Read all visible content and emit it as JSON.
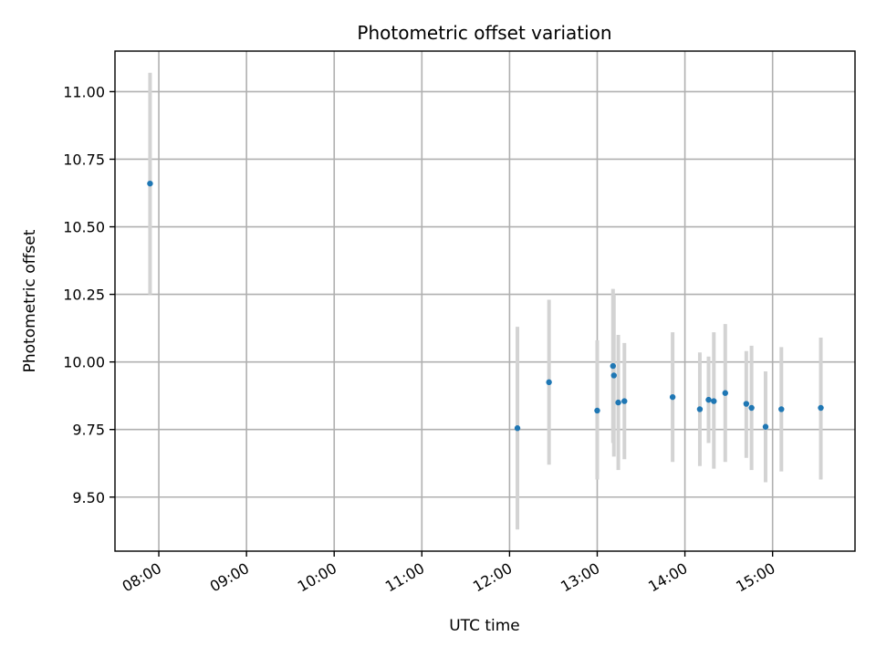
{
  "chart_data": {
    "type": "scatter",
    "title": "Photometric offset variation",
    "xlabel": "UTC time",
    "ylabel": "Photometric offset",
    "x_unit": "UTC time (hours, decimal)",
    "xlim": [
      7.5,
      15.94
    ],
    "ylim": [
      9.3,
      11.15
    ],
    "x_ticks": [
      {
        "value": 8,
        "label": "08:00"
      },
      {
        "value": 9,
        "label": "09:00"
      },
      {
        "value": 10,
        "label": "10:00"
      },
      {
        "value": 11,
        "label": "11:00"
      },
      {
        "value": 12,
        "label": "12:00"
      },
      {
        "value": 13,
        "label": "13:00"
      },
      {
        "value": 14,
        "label": "14:00"
      },
      {
        "value": 15,
        "label": "15:00"
      }
    ],
    "y_ticks": [
      {
        "value": 9.5,
        "label": "9.50"
      },
      {
        "value": 9.75,
        "label": "9.75"
      },
      {
        "value": 10.0,
        "label": "10.00"
      },
      {
        "value": 10.25,
        "label": "10.25"
      },
      {
        "value": 10.5,
        "label": "10.50"
      },
      {
        "value": 10.75,
        "label": "10.75"
      },
      {
        "value": 11.0,
        "label": "11.00"
      }
    ],
    "grid": true,
    "marker_color": "#1f77b4",
    "errorbar_color": "#d3d3d3",
    "points": [
      {
        "x": 7.9,
        "y": 10.66,
        "ylow": 10.25,
        "yhigh": 11.07
      },
      {
        "x": 12.09,
        "y": 9.755,
        "ylow": 9.38,
        "yhigh": 10.13
      },
      {
        "x": 12.45,
        "y": 9.925,
        "ylow": 9.62,
        "yhigh": 10.23
      },
      {
        "x": 13.0,
        "y": 9.82,
        "ylow": 9.565,
        "yhigh": 10.08
      },
      {
        "x": 13.18,
        "y": 9.985,
        "ylow": 9.7,
        "yhigh": 10.27
      },
      {
        "x": 13.19,
        "y": 9.95,
        "ylow": 9.65,
        "yhigh": 10.25
      },
      {
        "x": 13.24,
        "y": 9.85,
        "ylow": 9.6,
        "yhigh": 10.1
      },
      {
        "x": 13.31,
        "y": 9.855,
        "ylow": 9.64,
        "yhigh": 10.07
      },
      {
        "x": 13.86,
        "y": 9.87,
        "ylow": 9.63,
        "yhigh": 10.11
      },
      {
        "x": 14.17,
        "y": 9.825,
        "ylow": 9.615,
        "yhigh": 10.035
      },
      {
        "x": 14.27,
        "y": 9.86,
        "ylow": 9.7,
        "yhigh": 10.02
      },
      {
        "x": 14.33,
        "y": 9.855,
        "ylow": 9.605,
        "yhigh": 10.11
      },
      {
        "x": 14.46,
        "y": 9.885,
        "ylow": 9.63,
        "yhigh": 10.14
      },
      {
        "x": 14.7,
        "y": 9.845,
        "ylow": 9.645,
        "yhigh": 10.04
      },
      {
        "x": 14.76,
        "y": 9.83,
        "ylow": 9.6,
        "yhigh": 10.06
      },
      {
        "x": 14.92,
        "y": 9.76,
        "ylow": 9.555,
        "yhigh": 9.965
      },
      {
        "x": 15.1,
        "y": 9.825,
        "ylow": 9.595,
        "yhigh": 10.055
      },
      {
        "x": 15.55,
        "y": 9.83,
        "ylow": 9.565,
        "yhigh": 10.09
      }
    ]
  }
}
